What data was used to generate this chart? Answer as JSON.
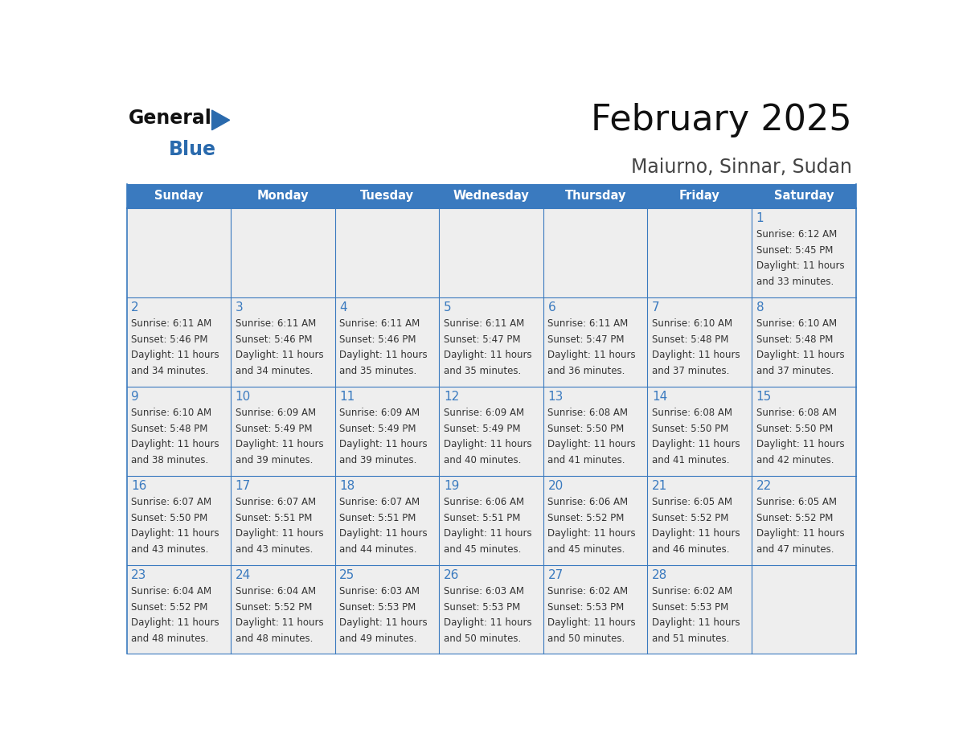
{
  "title": "February 2025",
  "subtitle": "Maiurno, Sinnar, Sudan",
  "header_color": "#3a7abf",
  "header_text_color": "#ffffff",
  "cell_bg_color": "#eeeeee",
  "border_color": "#3a7abf",
  "text_color": "#333333",
  "day_number_color": "#3a7abf",
  "days_of_week": [
    "Sunday",
    "Monday",
    "Tuesday",
    "Wednesday",
    "Thursday",
    "Friday",
    "Saturday"
  ],
  "logo_color_general": "#111111",
  "logo_color_blue": "#2a6aad",
  "calendar_data": [
    [
      null,
      null,
      null,
      null,
      null,
      null,
      {
        "day": 1,
        "sunrise": "6:12 AM",
        "sunset": "5:45 PM",
        "daylight_hours": 11,
        "daylight_minutes": 33
      }
    ],
    [
      {
        "day": 2,
        "sunrise": "6:11 AM",
        "sunset": "5:46 PM",
        "daylight_hours": 11,
        "daylight_minutes": 34
      },
      {
        "day": 3,
        "sunrise": "6:11 AM",
        "sunset": "5:46 PM",
        "daylight_hours": 11,
        "daylight_minutes": 34
      },
      {
        "day": 4,
        "sunrise": "6:11 AM",
        "sunset": "5:46 PM",
        "daylight_hours": 11,
        "daylight_minutes": 35
      },
      {
        "day": 5,
        "sunrise": "6:11 AM",
        "sunset": "5:47 PM",
        "daylight_hours": 11,
        "daylight_minutes": 35
      },
      {
        "day": 6,
        "sunrise": "6:11 AM",
        "sunset": "5:47 PM",
        "daylight_hours": 11,
        "daylight_minutes": 36
      },
      {
        "day": 7,
        "sunrise": "6:10 AM",
        "sunset": "5:48 PM",
        "daylight_hours": 11,
        "daylight_minutes": 37
      },
      {
        "day": 8,
        "sunrise": "6:10 AM",
        "sunset": "5:48 PM",
        "daylight_hours": 11,
        "daylight_minutes": 37
      }
    ],
    [
      {
        "day": 9,
        "sunrise": "6:10 AM",
        "sunset": "5:48 PM",
        "daylight_hours": 11,
        "daylight_minutes": 38
      },
      {
        "day": 10,
        "sunrise": "6:09 AM",
        "sunset": "5:49 PM",
        "daylight_hours": 11,
        "daylight_minutes": 39
      },
      {
        "day": 11,
        "sunrise": "6:09 AM",
        "sunset": "5:49 PM",
        "daylight_hours": 11,
        "daylight_minutes": 39
      },
      {
        "day": 12,
        "sunrise": "6:09 AM",
        "sunset": "5:49 PM",
        "daylight_hours": 11,
        "daylight_minutes": 40
      },
      {
        "day": 13,
        "sunrise": "6:08 AM",
        "sunset": "5:50 PM",
        "daylight_hours": 11,
        "daylight_minutes": 41
      },
      {
        "day": 14,
        "sunrise": "6:08 AM",
        "sunset": "5:50 PM",
        "daylight_hours": 11,
        "daylight_minutes": 41
      },
      {
        "day": 15,
        "sunrise": "6:08 AM",
        "sunset": "5:50 PM",
        "daylight_hours": 11,
        "daylight_minutes": 42
      }
    ],
    [
      {
        "day": 16,
        "sunrise": "6:07 AM",
        "sunset": "5:50 PM",
        "daylight_hours": 11,
        "daylight_minutes": 43
      },
      {
        "day": 17,
        "sunrise": "6:07 AM",
        "sunset": "5:51 PM",
        "daylight_hours": 11,
        "daylight_minutes": 43
      },
      {
        "day": 18,
        "sunrise": "6:07 AM",
        "sunset": "5:51 PM",
        "daylight_hours": 11,
        "daylight_minutes": 44
      },
      {
        "day": 19,
        "sunrise": "6:06 AM",
        "sunset": "5:51 PM",
        "daylight_hours": 11,
        "daylight_minutes": 45
      },
      {
        "day": 20,
        "sunrise": "6:06 AM",
        "sunset": "5:52 PM",
        "daylight_hours": 11,
        "daylight_minutes": 45
      },
      {
        "day": 21,
        "sunrise": "6:05 AM",
        "sunset": "5:52 PM",
        "daylight_hours": 11,
        "daylight_minutes": 46
      },
      {
        "day": 22,
        "sunrise": "6:05 AM",
        "sunset": "5:52 PM",
        "daylight_hours": 11,
        "daylight_minutes": 47
      }
    ],
    [
      {
        "day": 23,
        "sunrise": "6:04 AM",
        "sunset": "5:52 PM",
        "daylight_hours": 11,
        "daylight_minutes": 48
      },
      {
        "day": 24,
        "sunrise": "6:04 AM",
        "sunset": "5:52 PM",
        "daylight_hours": 11,
        "daylight_minutes": 48
      },
      {
        "day": 25,
        "sunrise": "6:03 AM",
        "sunset": "5:53 PM",
        "daylight_hours": 11,
        "daylight_minutes": 49
      },
      {
        "day": 26,
        "sunrise": "6:03 AM",
        "sunset": "5:53 PM",
        "daylight_hours": 11,
        "daylight_minutes": 50
      },
      {
        "day": 27,
        "sunrise": "6:02 AM",
        "sunset": "5:53 PM",
        "daylight_hours": 11,
        "daylight_minutes": 50
      },
      {
        "day": 28,
        "sunrise": "6:02 AM",
        "sunset": "5:53 PM",
        "daylight_hours": 11,
        "daylight_minutes": 51
      },
      null
    ]
  ]
}
